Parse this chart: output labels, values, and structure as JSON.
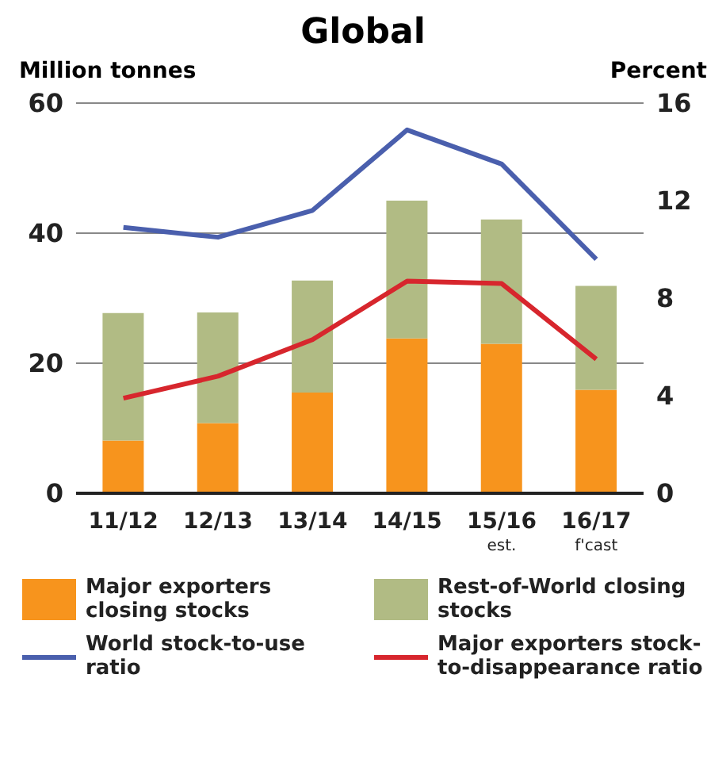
{
  "chart_data": {
    "type": "bar",
    "title": "Global",
    "ylabel": "Million tonnes",
    "y2label": "Percent",
    "categories": [
      "11/12",
      "12/13",
      "13/14",
      "14/15",
      "15/16\nest.",
      "16/17\nf'cast"
    ],
    "stacked": true,
    "series": [
      {
        "name": "Major exporters closing stocks",
        "color": "#f7941d",
        "values": [
          8.1,
          10.8,
          15.5,
          23.8,
          23.0,
          15.9
        ]
      },
      {
        "name": "Rest-of-World closing stocks",
        "color": "#b1bb84",
        "values": [
          19.6,
          17.0,
          17.2,
          21.2,
          19.1,
          16.0
        ]
      },
      {
        "name": "World stock-to-use ratio",
        "type": "line",
        "axis": "y2",
        "color": "#4a5fad",
        "values": [
          10.9,
          10.5,
          11.6,
          14.9,
          13.5,
          9.6
        ]
      },
      {
        "name": "Major exporters stock-to-disappearance ratio",
        "type": "line",
        "axis": "y2",
        "color": "#d7262d",
        "values": [
          3.9,
          4.8,
          6.3,
          8.7,
          8.6,
          5.5
        ]
      }
    ],
    "ylim": [
      0,
      60
    ],
    "yticks": [
      0,
      20,
      40,
      60
    ],
    "y2lim": [
      0,
      16
    ],
    "y2ticks": [
      0,
      4,
      8,
      12,
      16
    ],
    "grid": "y",
    "legend": "bottom",
    "marker": "none",
    "line_style": "solid"
  }
}
